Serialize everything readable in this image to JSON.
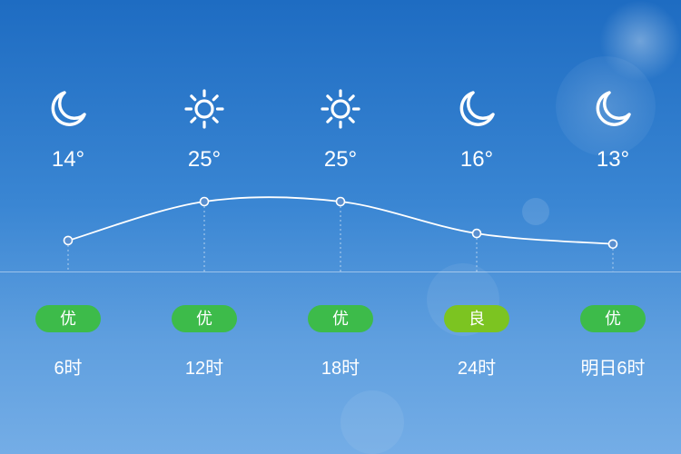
{
  "colors": {
    "excellent": "#3dbb4a",
    "good": "#7cc421"
  },
  "chart_data": {
    "type": "line",
    "categories": [
      "6时",
      "12时",
      "18时",
      "24时",
      "明日6时"
    ],
    "values": [
      14,
      25,
      25,
      16,
      13
    ]
  },
  "forecast": [
    {
      "time": "6时",
      "icon": "moon-icon",
      "temp": "14°",
      "aqi": "优",
      "aqi_level": "excellent"
    },
    {
      "time": "12时",
      "icon": "sun-icon",
      "temp": "25°",
      "aqi": "优",
      "aqi_level": "excellent"
    },
    {
      "time": "18时",
      "icon": "sun-icon",
      "temp": "25°",
      "aqi": "优",
      "aqi_level": "excellent"
    },
    {
      "time": "24时",
      "icon": "moon-icon",
      "temp": "16°",
      "aqi": "良",
      "aqi_level": "good"
    },
    {
      "time": "明日6时",
      "icon": "moon-icon",
      "temp": "13°",
      "aqi": "优",
      "aqi_level": "excellent"
    }
  ]
}
